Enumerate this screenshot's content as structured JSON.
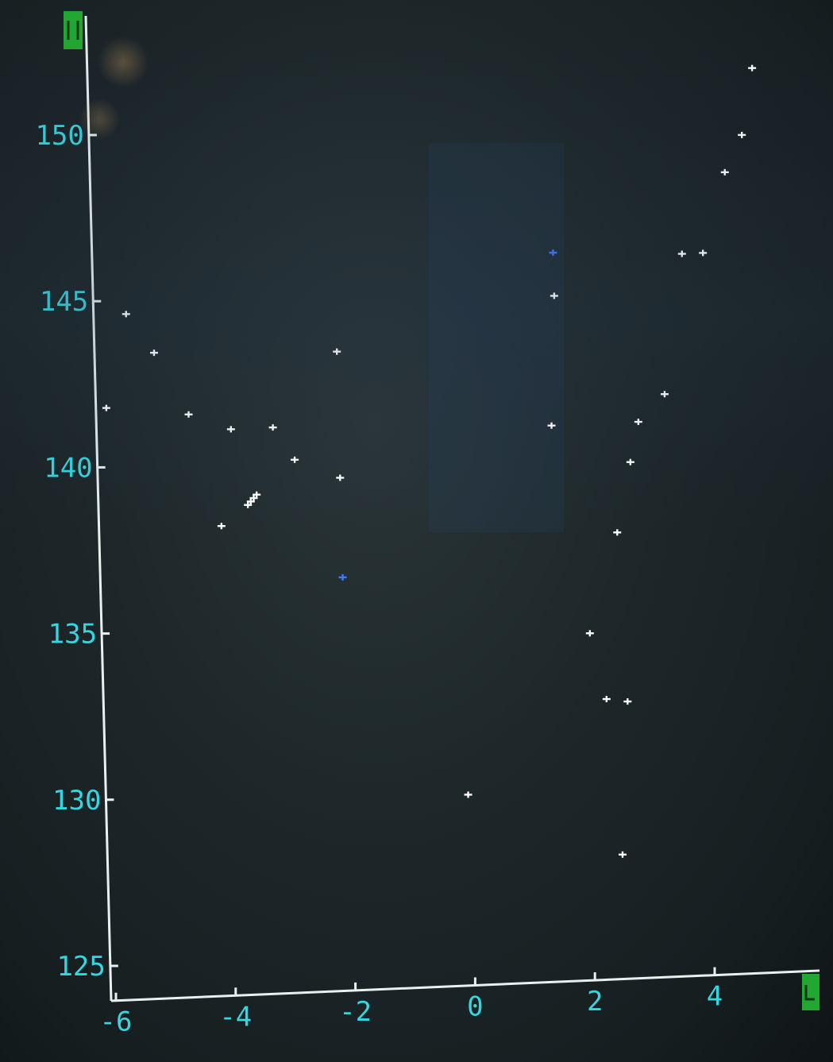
{
  "chart_data": {
    "type": "scatter",
    "title": "",
    "xlabel": "",
    "ylabel": "",
    "xlim": [
      -6,
      5.2
    ],
    "ylim": [
      124,
      153
    ],
    "x_ticks": [
      -6,
      -4,
      -2,
      0,
      2,
      4
    ],
    "y_ticks": [
      125,
      130,
      135,
      140,
      145,
      150
    ],
    "x_tick_labels": [
      "-6",
      "-4",
      "-2",
      "0",
      "2",
      "4"
    ],
    "y_tick_labels": [
      "125",
      "130",
      "135",
      "140",
      "145",
      "150"
    ],
    "grid": false,
    "colors": {
      "axis": "#e8f0f0",
      "tick_label": "#34d6e0",
      "point": "#ffffff",
      "highlight_point": "#3d7bff",
      "axis_marker": "#22a832"
    },
    "series": [
      {
        "points": [
          {
            "x": -5.92,
            "y": 141.8
          },
          {
            "x": -5.55,
            "y": 144.6
          },
          {
            "x": -5.1,
            "y": 143.4
          },
          {
            "x": -4.55,
            "y": 141.5
          },
          {
            "x": -3.85,
            "y": 141.0
          },
          {
            "x": -4.05,
            "y": 138.1
          },
          {
            "x": -3.6,
            "y": 138.7
          },
          {
            "x": -3.55,
            "y": 138.8
          },
          {
            "x": -3.5,
            "y": 138.9
          },
          {
            "x": -3.45,
            "y": 139.0
          },
          {
            "x": -3.15,
            "y": 141.0
          },
          {
            "x": -2.8,
            "y": 140.0
          },
          {
            "x": -2.05,
            "y": 143.2
          },
          {
            "x": -2.05,
            "y": 139.4
          },
          {
            "x": -0.05,
            "y": 129.7
          },
          {
            "x": 1.5,
            "y": 140.7
          },
          {
            "x": 1.6,
            "y": 144.6
          },
          {
            "x": 2.05,
            "y": 134.4
          },
          {
            "x": 2.3,
            "y": 132.4
          },
          {
            "x": 2.65,
            "y": 132.3
          },
          {
            "x": 2.5,
            "y": 127.7
          },
          {
            "x": 2.55,
            "y": 137.4
          },
          {
            "x": 2.8,
            "y": 139.5
          },
          {
            "x": 2.95,
            "y": 140.7
          },
          {
            "x": 3.4,
            "y": 141.5
          },
          {
            "x": 3.75,
            "y": 145.7
          },
          {
            "x": 4.1,
            "y": 145.7
          },
          {
            "x": 4.5,
            "y": 148.1
          },
          {
            "x": 4.8,
            "y": 149.2
          },
          {
            "x": 5.0,
            "y": 151.2
          }
        ]
      },
      {
        "points": [
          {
            "x": -2.05,
            "y": 136.4
          },
          {
            "x": 1.6,
            "y": 145.9
          }
        ]
      }
    ]
  }
}
